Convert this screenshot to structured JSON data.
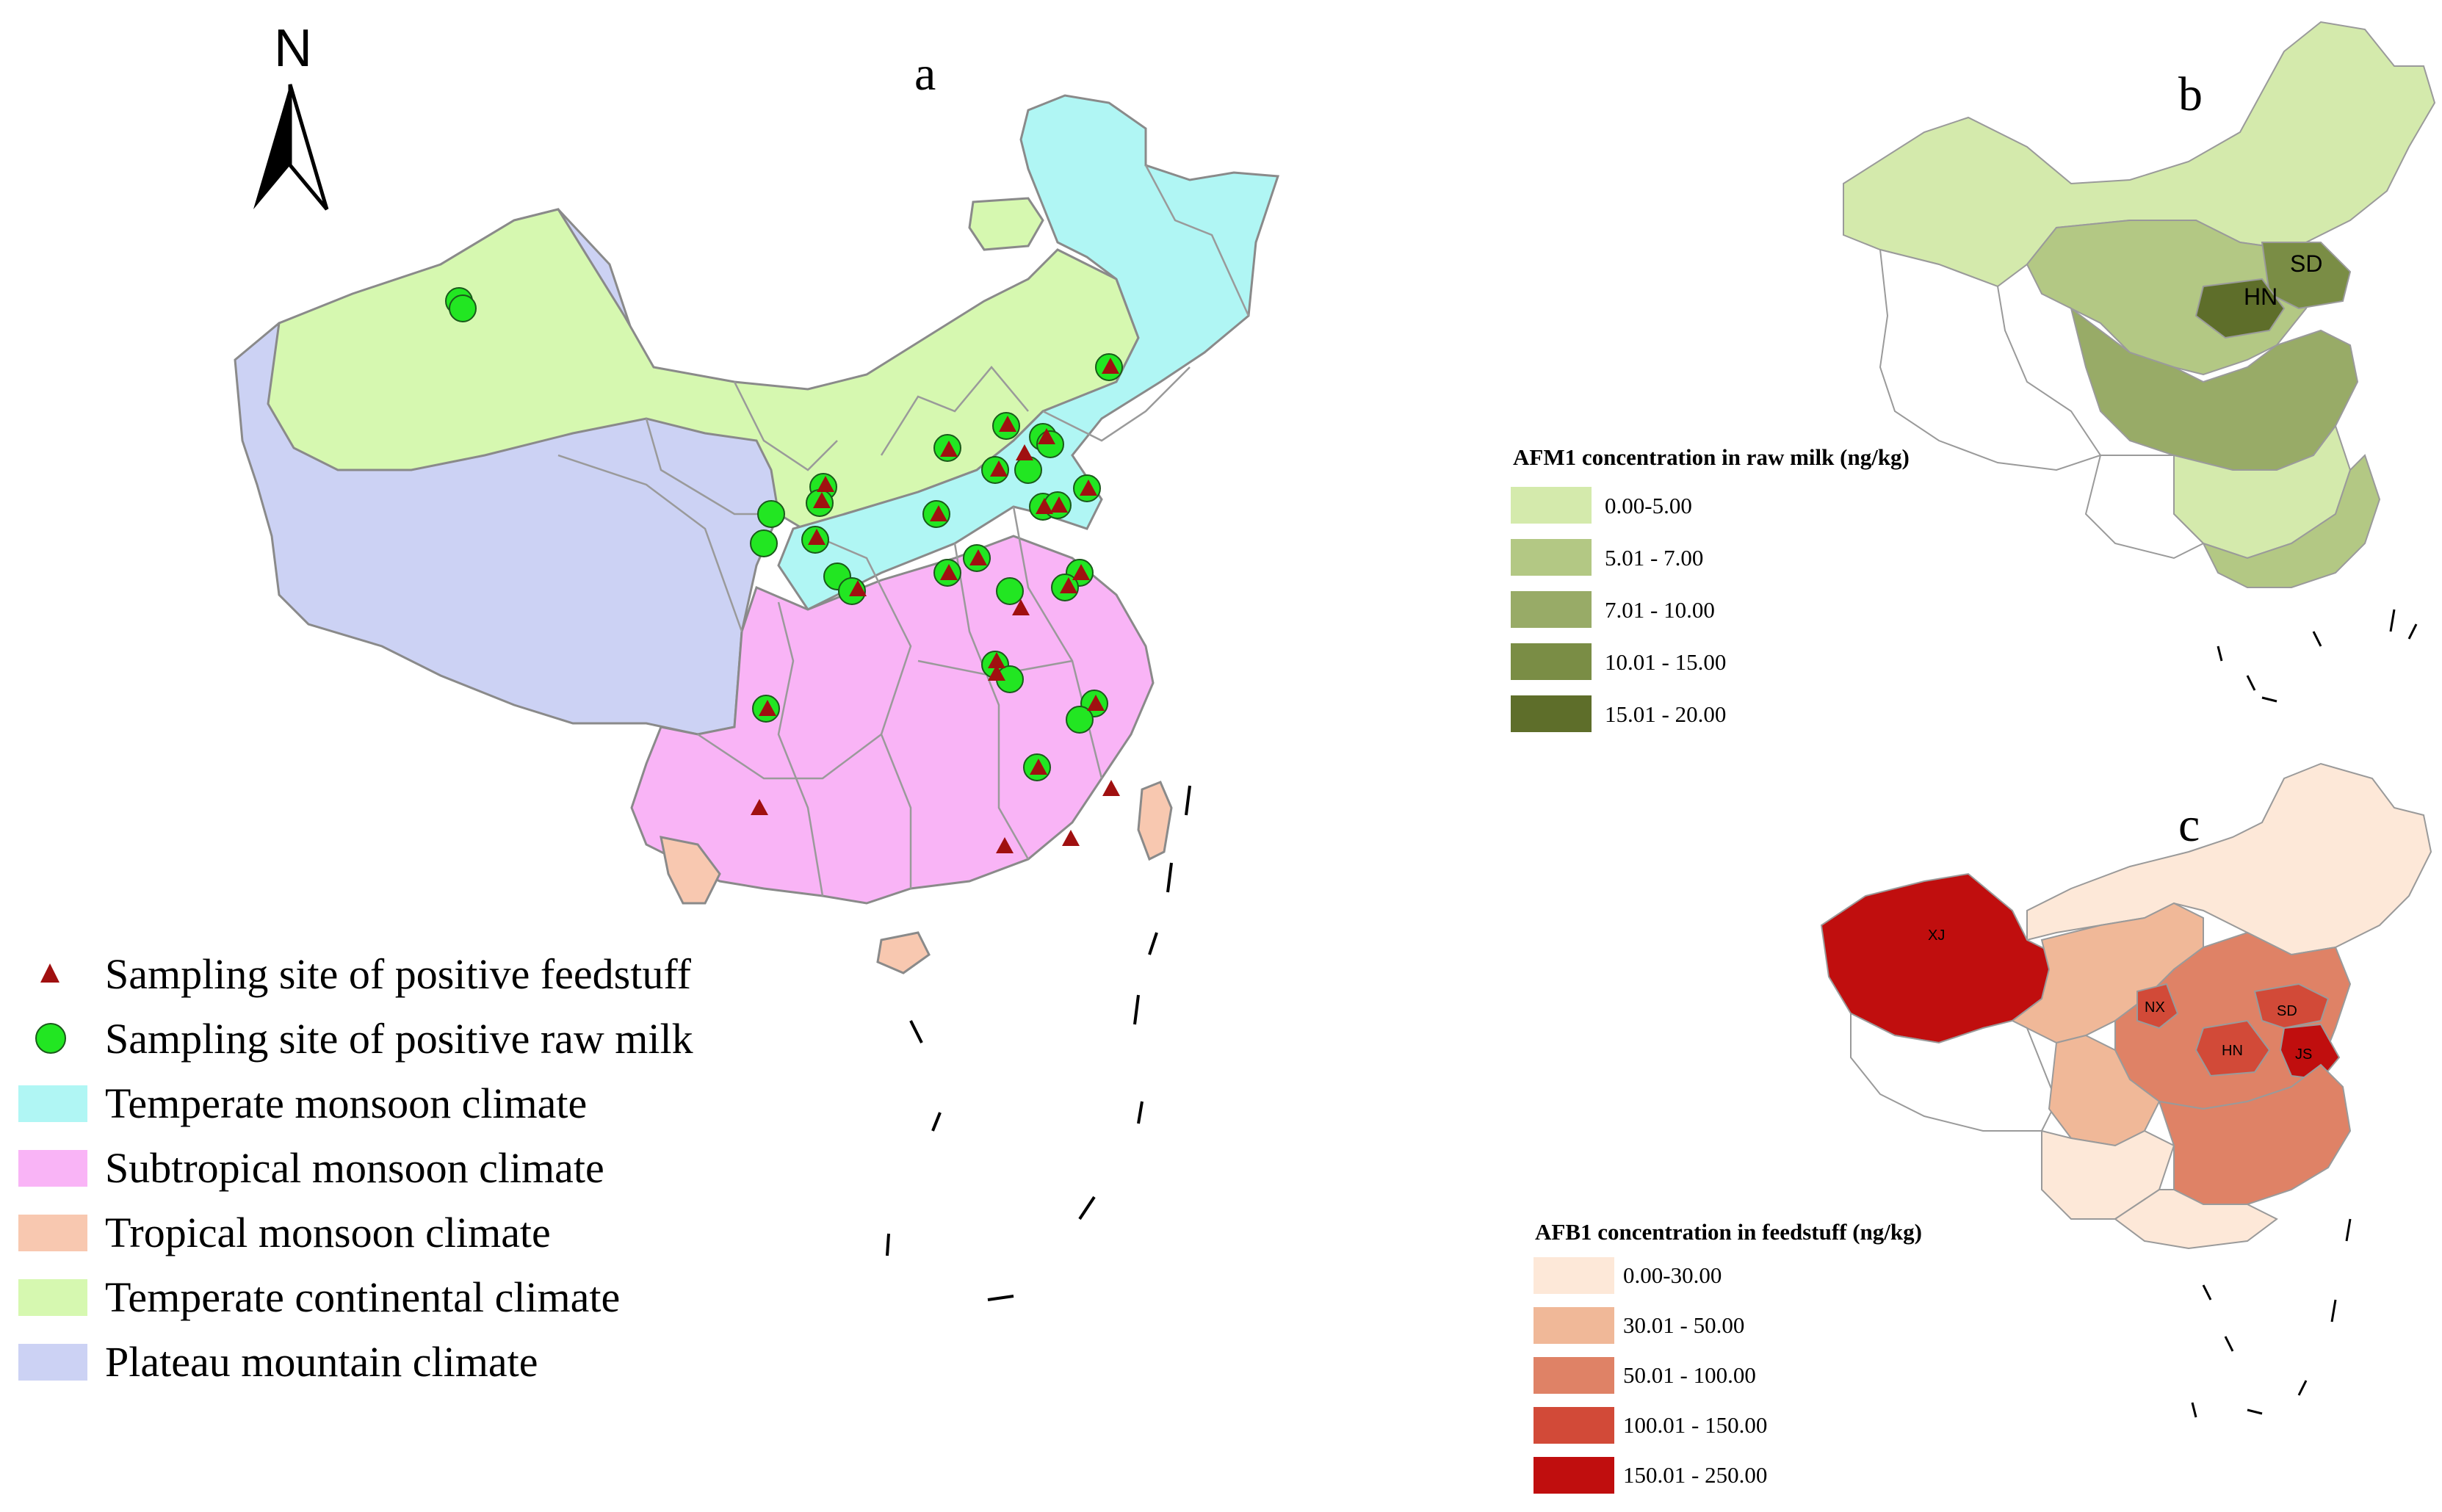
{
  "panels": {
    "a": {
      "letter": "a",
      "north_label": "N",
      "legend": [
        {
          "symbol": "triangle",
          "color": "#a01010",
          "label": "Sampling site of positive feedstuff"
        },
        {
          "symbol": "circle",
          "color": "#22e622",
          "label": "Sampling site of positive raw milk"
        },
        {
          "symbol": "swatch",
          "color": "#b0f6f4",
          "label": "Temperate monsoon climate"
        },
        {
          "symbol": "swatch",
          "color": "#f9b4f6",
          "label": "Subtropical monsoon climate"
        },
        {
          "symbol": "swatch",
          "color": "#f8c8b0",
          "label": "Tropical monsoon climate"
        },
        {
          "symbol": "swatch",
          "color": "#d6f8b0",
          "label": "Temperate continental climate"
        },
        {
          "symbol": "swatch",
          "color": "#ccd2f4",
          "label": "Plateau mountain climate"
        }
      ]
    },
    "b": {
      "letter": "b",
      "legend_title": "AFM1 concentration in raw milk (ng/kg)",
      "classes": [
        {
          "label": "0.00-5.00",
          "color": "#d4eaac"
        },
        {
          "label": "5.01 - 7.00",
          "color": "#b3c884"
        },
        {
          "label": "7.01 - 10.00",
          "color": "#98ab67"
        },
        {
          "label": "10.01 - 15.00",
          "color": "#7a8d45"
        },
        {
          "label": "15.01 - 20.00",
          "color": "#5e6e2a"
        }
      ],
      "region_labels": [
        "SD",
        "HN"
      ]
    },
    "c": {
      "letter": "c",
      "legend_title": "AFB1 concentration in feedstuff (ng/kg)",
      "classes": [
        {
          "label": "0.00-30.00",
          "color": "#fde8d8"
        },
        {
          "label": "30.01 - 50.00",
          "color": "#f0b898"
        },
        {
          "label": "50.01 - 100.00",
          "color": "#df8266"
        },
        {
          "label": "100.01 - 150.00",
          "color": "#d24a38"
        },
        {
          "label": "150.01 - 250.00",
          "color": "#c00e0e"
        }
      ],
      "region_labels": [
        "XJ",
        "NX",
        "SD",
        "HN",
        "JS"
      ]
    }
  }
}
